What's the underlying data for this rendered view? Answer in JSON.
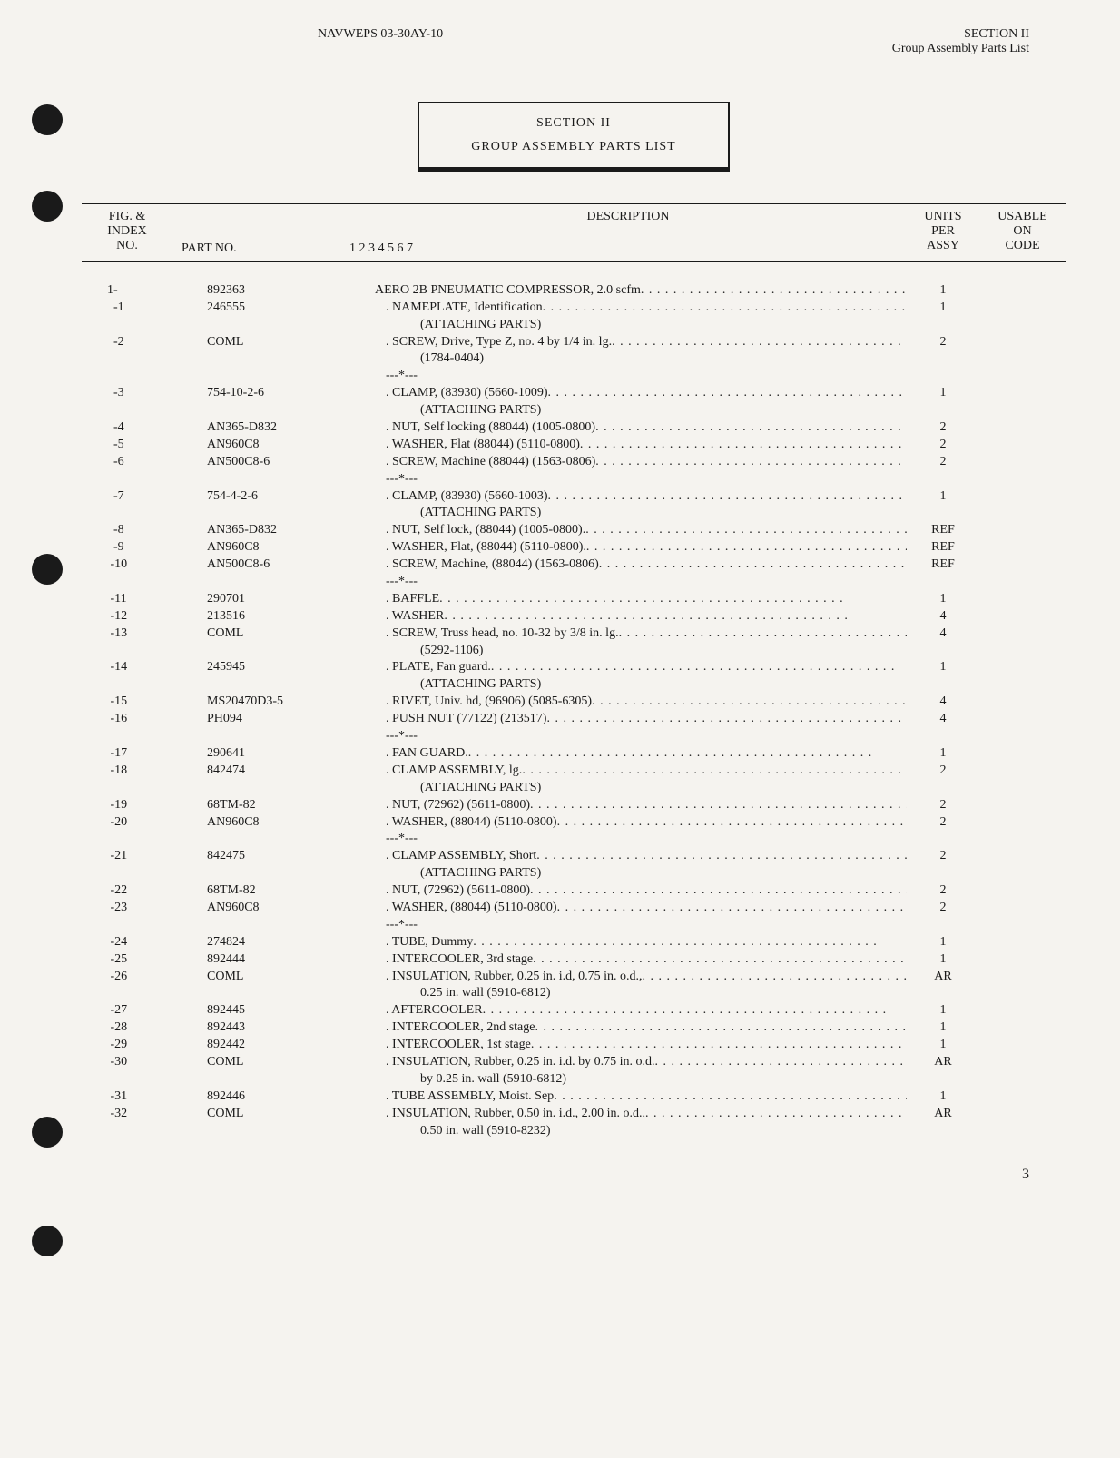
{
  "header": {
    "doc_id": "NAVWEPS 03-30AY-10",
    "section_label": "SECTION II",
    "section_sub": "Group Assembly Parts List"
  },
  "title_box": {
    "line1": "SECTION II",
    "line2": "GROUP ASSEMBLY PARTS LIST"
  },
  "col_headers": {
    "index_l1": "FIG. &",
    "index_l2": "INDEX",
    "index_l3": "NO.",
    "part": "PART NO.",
    "desc_l1": "DESCRIPTION",
    "desc_l2": "1 2 3 4 5 6 7",
    "units_l1": "UNITS",
    "units_l2": "PER",
    "units_l3": "ASSY",
    "code_l1": "USABLE",
    "code_l2": "ON",
    "code_l3": "CODE"
  },
  "rows": [
    {
      "idx": "1-",
      "part": "892363",
      "indent": 0,
      "desc": "AERO 2B PNEUMATIC COMPRESSOR, 2.0 scfm",
      "dots": true,
      "units": "1"
    },
    {
      "idx": "  -1",
      "part": "246555",
      "indent": 1,
      "desc": ". NAMEPLATE, Identification",
      "dots": true,
      "units": "1"
    },
    {
      "idx": "",
      "part": "",
      "indent": 1,
      "desc": "",
      "attach": "(ATTACHING PARTS)",
      "units": ""
    },
    {
      "idx": "  -2",
      "part": "COML",
      "indent": 1,
      "desc": ". SCREW, Drive, Type Z, no. 4 by 1/4 in. lg.",
      "dots": true,
      "units": "2"
    },
    {
      "idx": "",
      "part": "",
      "indent": 1,
      "desc": "",
      "sub": "(1784-0404)",
      "units": ""
    },
    {
      "idx": "",
      "part": "",
      "indent": 1,
      "desc": "",
      "sep": "---*---",
      "units": ""
    },
    {
      "idx": "  -3",
      "part": "754-10-2-6",
      "indent": 1,
      "desc": ". CLAMP, (83930) (5660-1009)",
      "dots": true,
      "units": "1"
    },
    {
      "idx": "",
      "part": "",
      "indent": 1,
      "desc": "",
      "attach": "(ATTACHING PARTS)",
      "units": ""
    },
    {
      "idx": "  -4",
      "part": "AN365-D832",
      "indent": 1,
      "desc": ". NUT, Self locking (88044) (1005-0800)",
      "dots": true,
      "units": "2"
    },
    {
      "idx": "  -5",
      "part": "AN960C8",
      "indent": 1,
      "desc": ". WASHER, Flat (88044) (5110-0800)",
      "dots": true,
      "units": "2"
    },
    {
      "idx": "  -6",
      "part": "AN500C8-6",
      "indent": 1,
      "desc": ". SCREW, Machine (88044) (1563-0806)",
      "dots": true,
      "units": "2"
    },
    {
      "idx": "",
      "part": "",
      "indent": 1,
      "desc": "",
      "sep": "---*---",
      "units": ""
    },
    {
      "idx": "  -7",
      "part": "754-4-2-6",
      "indent": 1,
      "desc": ". CLAMP, (83930) (5660-1003)",
      "dots": true,
      "units": "1"
    },
    {
      "idx": "",
      "part": "",
      "indent": 1,
      "desc": "",
      "attach": "(ATTACHING PARTS)",
      "units": ""
    },
    {
      "idx": "  -8",
      "part": "AN365-D832",
      "indent": 1,
      "desc": ". NUT, Self lock, (88044) (1005-0800).",
      "dots": true,
      "units": "REF"
    },
    {
      "idx": "  -9",
      "part": "AN960C8",
      "indent": 1,
      "desc": ". WASHER, Flat, (88044) (5110-0800).",
      "dots": true,
      "units": "REF"
    },
    {
      "idx": " -10",
      "part": "AN500C8-6",
      "indent": 1,
      "desc": ". SCREW, Machine, (88044) (1563-0806)",
      "dots": true,
      "units": "REF"
    },
    {
      "idx": "",
      "part": "",
      "indent": 1,
      "desc": "",
      "sep": "---*---",
      "units": ""
    },
    {
      "idx": " -11",
      "part": "290701",
      "indent": 1,
      "desc": ". BAFFLE",
      "dots": true,
      "units": "1"
    },
    {
      "idx": " -12",
      "part": "213516",
      "indent": 1,
      "desc": ". WASHER",
      "dots": true,
      "units": "4"
    },
    {
      "idx": " -13",
      "part": "COML",
      "indent": 1,
      "desc": ". SCREW, Truss head, no. 10-32 by 3/8 in. lg.",
      "dots": true,
      "units": "4"
    },
    {
      "idx": "",
      "part": "",
      "indent": 1,
      "desc": "",
      "sub": "(5292-1106)",
      "units": ""
    },
    {
      "idx": " -14",
      "part": "245945",
      "indent": 1,
      "desc": ". PLATE, Fan guard.",
      "dots": true,
      "units": "1"
    },
    {
      "idx": "",
      "part": "",
      "indent": 1,
      "desc": "",
      "attach": "(ATTACHING PARTS)",
      "units": ""
    },
    {
      "idx": " -15",
      "part": "MS20470D3-5",
      "indent": 1,
      "desc": ". RIVET, Univ. hd, (96906) (5085-6305)",
      "dots": true,
      "units": "4"
    },
    {
      "idx": " -16",
      "part": "PH094",
      "indent": 1,
      "desc": ". PUSH NUT (77122) (213517)",
      "dots": true,
      "units": "4"
    },
    {
      "idx": "",
      "part": "",
      "indent": 1,
      "desc": "",
      "sep": "---*---",
      "units": ""
    },
    {
      "idx": " -17",
      "part": "290641",
      "indent": 1,
      "desc": ". FAN GUARD.",
      "dots": true,
      "units": "1"
    },
    {
      "idx": " -18",
      "part": "842474",
      "indent": 1,
      "desc": ". CLAMP ASSEMBLY, lg.",
      "dots": true,
      "units": "2"
    },
    {
      "idx": "",
      "part": "",
      "indent": 1,
      "desc": "",
      "attach": "(ATTACHING PARTS)",
      "units": ""
    },
    {
      "idx": " -19",
      "part": "68TM-82",
      "indent": 1,
      "desc": ". NUT, (72962) (5611-0800)",
      "dots": true,
      "units": "2"
    },
    {
      "idx": " -20",
      "part": "AN960C8",
      "indent": 1,
      "desc": ". WASHER, (88044) (5110-0800)",
      "dots": true,
      "units": "2"
    },
    {
      "idx": "",
      "part": "",
      "indent": 1,
      "desc": "",
      "sep": "---*---",
      "units": ""
    },
    {
      "idx": " -21",
      "part": "842475",
      "indent": 1,
      "desc": ". CLAMP ASSEMBLY, Short",
      "dots": true,
      "units": "2"
    },
    {
      "idx": "",
      "part": "",
      "indent": 1,
      "desc": "",
      "attach": "(ATTACHING PARTS)",
      "units": ""
    },
    {
      "idx": " -22",
      "part": "68TM-82",
      "indent": 1,
      "desc": ". NUT, (72962) (5611-0800)",
      "dots": true,
      "units": "2"
    },
    {
      "idx": " -23",
      "part": "AN960C8",
      "indent": 1,
      "desc": ". WASHER, (88044) (5110-0800)",
      "dots": true,
      "units": "2"
    },
    {
      "idx": "",
      "part": "",
      "indent": 1,
      "desc": "",
      "sep": "---*---",
      "units": ""
    },
    {
      "idx": " -24",
      "part": "274824",
      "indent": 1,
      "desc": ". TUBE, Dummy",
      "dots": true,
      "units": "1"
    },
    {
      "idx": " -25",
      "part": "892444",
      "indent": 1,
      "desc": ". INTERCOOLER, 3rd stage",
      "dots": true,
      "units": "1"
    },
    {
      "idx": " -26",
      "part": "COML",
      "indent": 1,
      "desc": ". INSULATION, Rubber, 0.25 in. i.d, 0.75 in. o.d.,",
      "dots": true,
      "units": "AR"
    },
    {
      "idx": "",
      "part": "",
      "indent": 1,
      "desc": "",
      "sub": "0.25 in. wall (5910-6812)",
      "units": ""
    },
    {
      "idx": " -27",
      "part": "892445",
      "indent": 1,
      "desc": ". AFTERCOOLER",
      "dots": true,
      "units": "1"
    },
    {
      "idx": " -28",
      "part": "892443",
      "indent": 1,
      "desc": ". INTERCOOLER, 2nd stage",
      "dots": true,
      "units": "1"
    },
    {
      "idx": " -29",
      "part": "892442",
      "indent": 1,
      "desc": ". INTERCOOLER, 1st stage",
      "dots": true,
      "units": "1"
    },
    {
      "idx": " -30",
      "part": "COML",
      "indent": 1,
      "desc": ". INSULATION, Rubber, 0.25 in. i.d. by 0.75 in. o.d.",
      "dots": true,
      "units": "AR"
    },
    {
      "idx": "",
      "part": "",
      "indent": 1,
      "desc": "",
      "sub": "by 0.25 in. wall (5910-6812)",
      "units": ""
    },
    {
      "idx": " -31",
      "part": "892446",
      "indent": 1,
      "desc": ". TUBE ASSEMBLY, Moist. Sep",
      "dots": true,
      "units": "1"
    },
    {
      "idx": " -32",
      "part": "COML",
      "indent": 1,
      "desc": ". INSULATION, Rubber, 0.50 in. i.d., 2.00 in. o.d.,",
      "dots": true,
      "units": "AR"
    },
    {
      "idx": "",
      "part": "",
      "indent": 1,
      "desc": "",
      "sub": "0.50 in. wall (5910-8232)",
      "units": ""
    }
  ],
  "page_number": "3",
  "holes": [
    115,
    210,
    610,
    1230,
    1350
  ]
}
